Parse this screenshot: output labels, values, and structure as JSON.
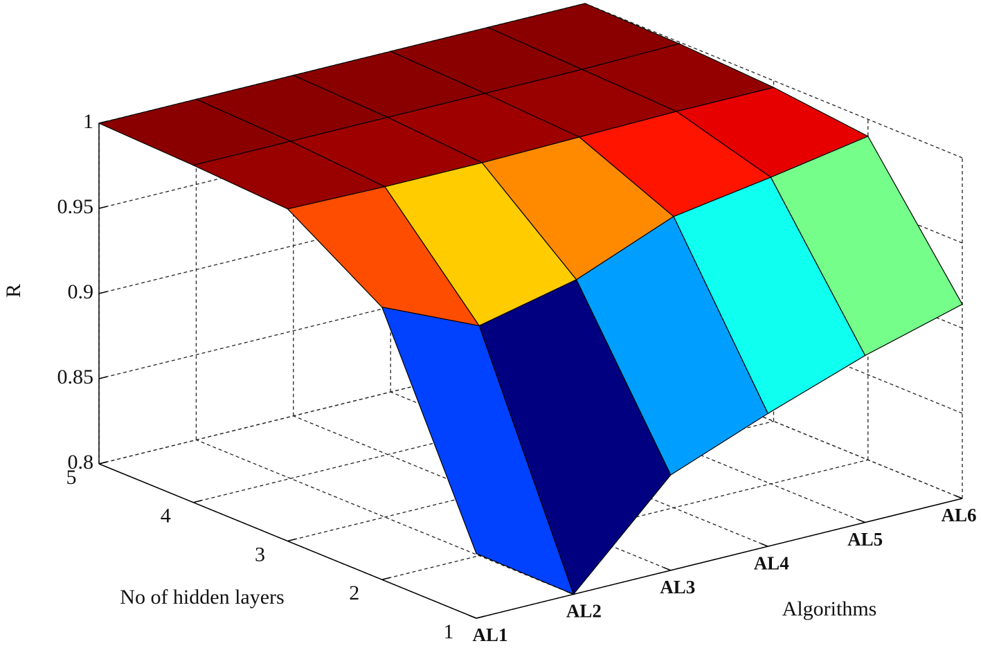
{
  "chart_data": {
    "type": "surface",
    "categories": [
      "AL1",
      "AL2",
      "AL3",
      "AL4",
      "AL5",
      "AL6"
    ],
    "y": [
      1,
      2,
      3,
      4,
      5
    ],
    "values": [
      [
        0.838,
        0.8,
        0.856,
        0.878,
        0.898,
        0.914
      ],
      [
        0.96,
        0.935,
        0.948,
        0.971,
        0.98,
        0.99
      ],
      [
        0.995,
        0.994,
        0.994,
        0.995,
        0.996,
        0.996
      ],
      [
        0.998,
        0.998,
        0.998,
        0.998,
        0.998,
        0.999
      ],
      [
        1,
        1,
        1,
        1,
        1,
        1
      ]
    ],
    "xlabel": "Algorithms",
    "ylabel": "No of hidden layers",
    "zlabel": "R",
    "ylim": [
      1,
      5
    ],
    "yticks": [
      1,
      2,
      3,
      4,
      5
    ],
    "zlim": [
      0.8,
      1
    ],
    "zticks": [
      0.8,
      0.85,
      0.9,
      0.95,
      1
    ],
    "colormap": "jet",
    "grid": true
  }
}
